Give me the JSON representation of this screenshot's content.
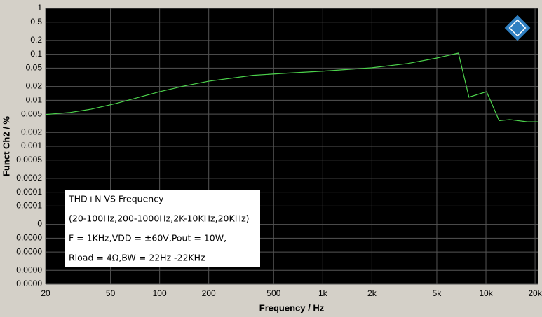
{
  "chart_data": {
    "type": "line",
    "xlabel": "Frequency / Hz",
    "ylabel": "Funct Ch2 / %",
    "annotation": [
      "THD+N VS  Frequency",
      "(20-100Hz,200-1000Hz,2K-10KHz,20KHz)",
      "F = 1KHz,VDD = ±60V,Pout = 10W,",
      "Rload = 4Ω,BW = 22Hz -22KHz"
    ],
    "xscale": "log",
    "yscale": "log",
    "grid": true,
    "xlim": [
      20,
      21000
    ],
    "ylim": [
      1e-06,
      1
    ],
    "xticks": [
      20,
      50,
      100,
      200,
      500,
      {
        "value": 1000,
        "label": "1k"
      },
      {
        "value": 2000,
        "label": "2k"
      },
      {
        "value": 5000,
        "label": "5k"
      },
      {
        "value": 10000,
        "label": "10k"
      },
      {
        "value": 20000,
        "label": "20k"
      }
    ],
    "yticks": [
      1,
      0.5,
      0.2,
      0.1,
      0.05,
      0.02,
      0.01,
      0.005,
      0.002,
      0.001,
      0.0005,
      0.0002,
      0.0001,
      {
        "value": 5e-05,
        "label": "0.0001"
      },
      {
        "value": 2e-05,
        "label": "0"
      },
      {
        "value": 1e-05,
        "label": "0.0000"
      },
      {
        "value": 5e-06,
        "label": "0.0000"
      },
      {
        "value": 2e-06,
        "label": "0.0000"
      },
      {
        "value": 1e-06,
        "label": "0.0000"
      }
    ],
    "series": [
      {
        "color": "#4cd24c",
        "x": [
          20,
          28,
          38,
          54,
          100,
          146,
          200,
          374,
          614,
          1000,
          2000,
          3320,
          5000,
          6780,
          7870,
          10090,
          12050,
          14000,
          17940,
          21000
        ],
        "values": [
          0.0049,
          0.0054,
          0.0064,
          0.0085,
          0.0154,
          0.021,
          0.026,
          0.035,
          0.039,
          0.043,
          0.051,
          0.063,
          0.083,
          0.106,
          0.0117,
          0.0154,
          0.0036,
          0.0038,
          0.0034,
          0.0034
        ]
      }
    ]
  }
}
